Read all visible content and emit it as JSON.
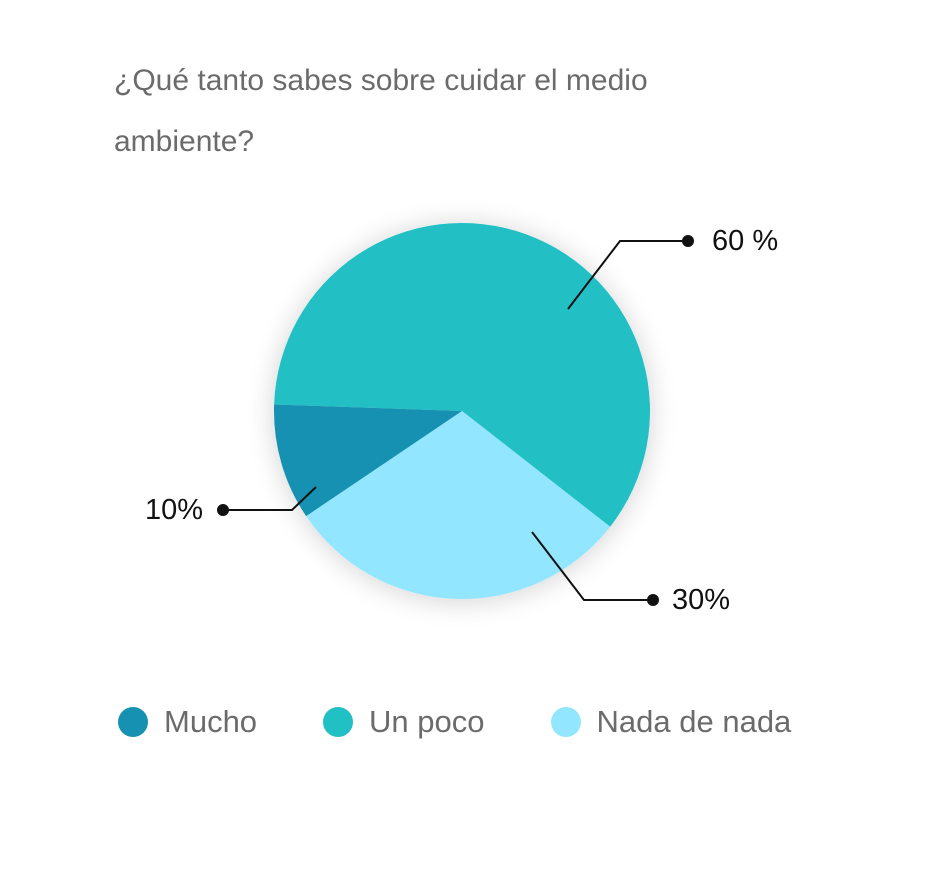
{
  "chart_data": {
    "type": "pie",
    "title": "¿Qué tanto sabes sobre cuidar el medio ambiente?",
    "slices": [
      {
        "name": "Mucho",
        "value": 10,
        "label": "10%",
        "color": "#1791B1"
      },
      {
        "name": "Un poco",
        "value": 60,
        "label": "60 %",
        "color": "#20C0C5"
      },
      {
        "name": "Nada de nada",
        "value": 30,
        "label": "30%",
        "color": "#92E6FF"
      }
    ],
    "legend_position": "bottom",
    "label_color": "#111111",
    "text_color": "#6b6b6b"
  }
}
